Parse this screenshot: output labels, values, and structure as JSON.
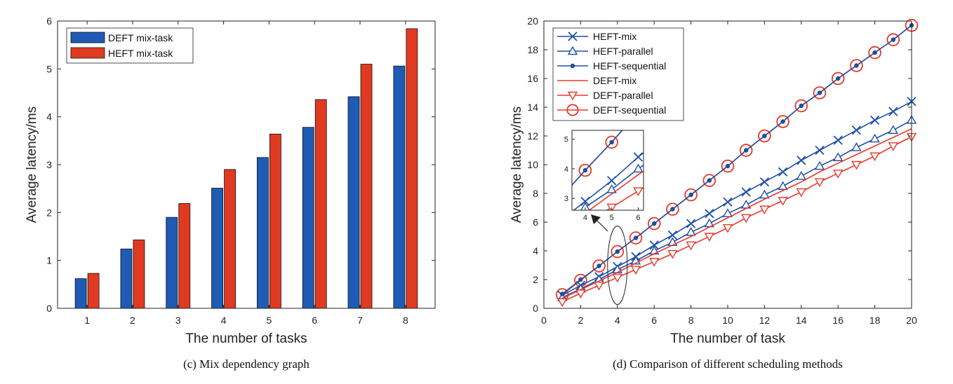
{
  "captions": {
    "left": "(c) Mix dependency graph",
    "right": "(d) Comparison of different scheduling methods"
  },
  "colors": {
    "blue": "#1f4fa8",
    "red": "#e8392a",
    "bar_blue": "#1f5bb5",
    "bar_red": "#e03a22"
  },
  "chart_data": [
    {
      "type": "bar",
      "xlabel": "The number of tasks",
      "ylabel": "Average latency/ms",
      "ylim": [
        0,
        6
      ],
      "yticks": [
        0,
        1,
        2,
        3,
        4,
        5,
        6
      ],
      "categories": [
        "1",
        "2",
        "3",
        "4",
        "5",
        "6",
        "7",
        "8"
      ],
      "legend": "top-left",
      "series": [
        {
          "name": "DEFT mix-task",
          "color": "#1f5bb5",
          "values": [
            0.62,
            1.24,
            1.9,
            2.51,
            3.15,
            3.78,
            4.42,
            5.06
          ]
        },
        {
          "name": "HEFT mix-task",
          "color": "#e03a22",
          "values": [
            0.73,
            1.43,
            2.19,
            2.9,
            3.64,
            4.36,
            5.1,
            5.84
          ]
        }
      ]
    },
    {
      "type": "line",
      "xlabel": "The number of task",
      "ylabel": "Average latency/ms",
      "xlim": [
        0,
        20
      ],
      "ylim": [
        0,
        20
      ],
      "xticks": [
        0,
        2,
        4,
        6,
        8,
        10,
        12,
        14,
        16,
        18,
        20
      ],
      "yticks": [
        0,
        2,
        4,
        6,
        8,
        10,
        12,
        14,
        16,
        18,
        20
      ],
      "legend": "top-left",
      "x": [
        1,
        2,
        3,
        4,
        5,
        6,
        7,
        8,
        9,
        10,
        11,
        12,
        13,
        14,
        15,
        16,
        17,
        18,
        19,
        20
      ],
      "series": [
        {
          "name": "HEFT-mix",
          "color": "#1f4fa8",
          "marker": "x",
          "values": [
            0.9,
            1.6,
            2.2,
            2.9,
            3.6,
            4.4,
            5.1,
            5.9,
            6.6,
            7.4,
            8.1,
            8.8,
            9.5,
            10.3,
            11.0,
            11.7,
            12.4,
            13.1,
            13.7,
            14.4
          ]
        },
        {
          "name": "HEFT-parallel",
          "color": "#1f4fa8",
          "marker": "triangle-up",
          "values": [
            0.75,
            1.35,
            2.0,
            2.7,
            3.3,
            4.0,
            4.6,
            5.3,
            5.9,
            6.6,
            7.2,
            7.9,
            8.5,
            9.2,
            9.9,
            10.5,
            11.2,
            11.8,
            12.4,
            13.1
          ]
        },
        {
          "name": "HEFT-sequential",
          "color": "#1f4fa8",
          "marker": "dot",
          "values": [
            1.0,
            2.0,
            2.95,
            3.95,
            4.9,
            5.9,
            6.9,
            7.9,
            8.9,
            9.9,
            11.0,
            12.0,
            13.0,
            14.1,
            15.0,
            16.0,
            16.9,
            17.8,
            18.7,
            19.7
          ]
        },
        {
          "name": "DEFT-mix",
          "color": "#e8392a",
          "marker": "none",
          "values": [
            0.7,
            1.3,
            1.9,
            2.5,
            3.15,
            3.8,
            4.4,
            5.0,
            5.65,
            6.3,
            6.95,
            7.6,
            8.2,
            8.8,
            9.5,
            10.1,
            10.7,
            11.3,
            11.9,
            12.5
          ]
        },
        {
          "name": "DEFT-parallel",
          "color": "#e8392a",
          "marker": "triangle-down",
          "values": [
            0.45,
            1.05,
            1.6,
            2.15,
            2.7,
            3.25,
            3.8,
            4.4,
            5.0,
            5.6,
            6.3,
            6.9,
            7.5,
            8.1,
            8.8,
            9.4,
            10.0,
            10.6,
            11.3,
            11.95
          ]
        },
        {
          "name": "DEFT-sequential",
          "color": "#e8392a",
          "marker": "circle",
          "values": [
            0.95,
            1.95,
            2.95,
            3.95,
            4.9,
            5.9,
            6.9,
            7.9,
            8.9,
            9.9,
            11.0,
            12.0,
            13.0,
            14.1,
            15.0,
            16.0,
            16.9,
            17.8,
            18.7,
            19.7
          ]
        }
      ],
      "inset": {
        "xlim": [
          3.5,
          6.2
        ],
        "ylim": [
          2.6,
          5.3
        ],
        "xticks": [
          4,
          5,
          6
        ],
        "yticks": [
          3,
          4,
          5
        ]
      }
    }
  ]
}
